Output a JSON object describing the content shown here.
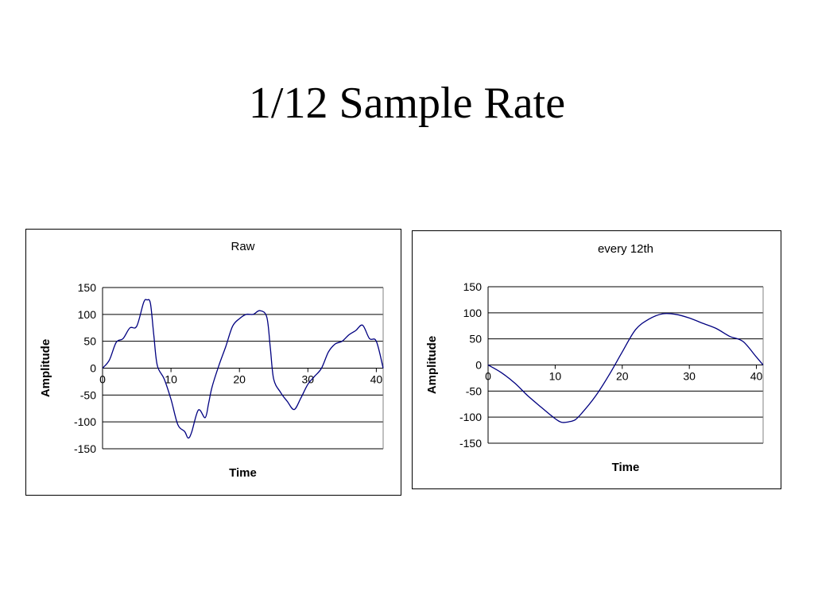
{
  "slide": {
    "title": "1/12 Sample Rate"
  },
  "chart_data": [
    {
      "type": "line",
      "title": "Raw",
      "xlabel": "Time",
      "ylabel": "Amplitude",
      "xlim": [
        0,
        41
      ],
      "ylim": [
        -150,
        150
      ],
      "x_ticks": [
        0,
        10,
        20,
        30,
        40
      ],
      "y_ticks": [
        150,
        100,
        50,
        0,
        -50,
        -100,
        -150
      ],
      "grid": "horizontal",
      "legend": "none",
      "series_color": "#000080",
      "series": [
        {
          "x": [
            0,
            1,
            2,
            3,
            4,
            5,
            6,
            6.5,
            7,
            7.5,
            8,
            9,
            10,
            11,
            12,
            12.5,
            13,
            14,
            15,
            15.5,
            16,
            17,
            18,
            19,
            20,
            21,
            22,
            23,
            24,
            24.5,
            25,
            26,
            27,
            28,
            29,
            30,
            31,
            32,
            33,
            34,
            35,
            36,
            37,
            38,
            39,
            40,
            41
          ],
          "y": [
            0,
            15,
            48,
            55,
            75,
            78,
            122,
            127,
            120,
            60,
            5,
            -20,
            -58,
            -105,
            -118,
            -130,
            -120,
            -78,
            -92,
            -65,
            -35,
            5,
            40,
            78,
            92,
            100,
            100,
            107,
            95,
            40,
            -20,
            -45,
            -62,
            -77,
            -55,
            -30,
            -15,
            0,
            30,
            45,
            50,
            62,
            70,
            80,
            55,
            50,
            0
          ]
        }
      ]
    },
    {
      "type": "line",
      "title": "every 12th",
      "xlabel": "Time",
      "ylabel": "Amplitude",
      "xlim": [
        0,
        41
      ],
      "ylim": [
        -150,
        150
      ],
      "x_ticks": [
        0,
        10,
        20,
        30,
        40
      ],
      "y_ticks": [
        150,
        100,
        50,
        0,
        -50,
        -100,
        -150
      ],
      "grid": "horizontal",
      "legend": "none",
      "series_color": "#000080",
      "series": [
        {
          "x": [
            0,
            2,
            4,
            6,
            8,
            10,
            11,
            12,
            13,
            14,
            16,
            18,
            20,
            22,
            24,
            26,
            28,
            30,
            32,
            34,
            36,
            38,
            40,
            41
          ],
          "y": [
            0,
            -15,
            -35,
            -60,
            -82,
            -103,
            -110,
            -109,
            -105,
            -92,
            -60,
            -20,
            25,
            68,
            88,
            98,
            97,
            90,
            80,
            70,
            55,
            45,
            15,
            0
          ]
        }
      ]
    }
  ]
}
